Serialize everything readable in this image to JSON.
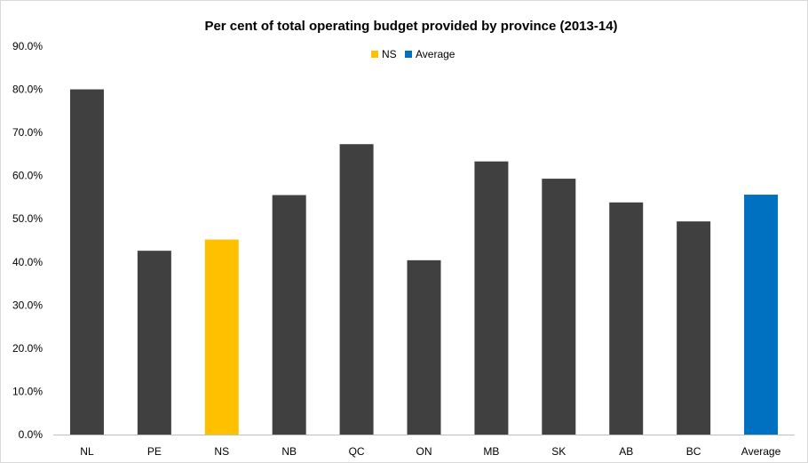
{
  "chart_data": {
    "type": "bar",
    "title": "Per cent of total operating budget provided by province (2013-14)",
    "xlabel": "",
    "ylabel": "",
    "ylim": [
      0,
      90
    ],
    "yticks": [
      "0.0%",
      "10.0%",
      "20.0%",
      "30.0%",
      "40.0%",
      "50.0%",
      "60.0%",
      "70.0%",
      "80.0%",
      "90.0%"
    ],
    "grid": false,
    "legend": {
      "position": "top",
      "entries": [
        {
          "name": "NS",
          "color": "#FFC000"
        },
        {
          "name": "Average",
          "color": "#0070C0"
        }
      ]
    },
    "categories": [
      "NL",
      "PE",
      "NS",
      "NB",
      "QC",
      "ON",
      "MB",
      "SK",
      "AB",
      "BC",
      "Average"
    ],
    "values": [
      80.0,
      42.6,
      45.2,
      55.5,
      67.3,
      40.4,
      63.3,
      59.3,
      53.8,
      49.4,
      55.6
    ],
    "colors": [
      "#404040",
      "#404040",
      "#FFC000",
      "#404040",
      "#404040",
      "#404040",
      "#404040",
      "#404040",
      "#404040",
      "#404040",
      "#0070C0"
    ]
  }
}
